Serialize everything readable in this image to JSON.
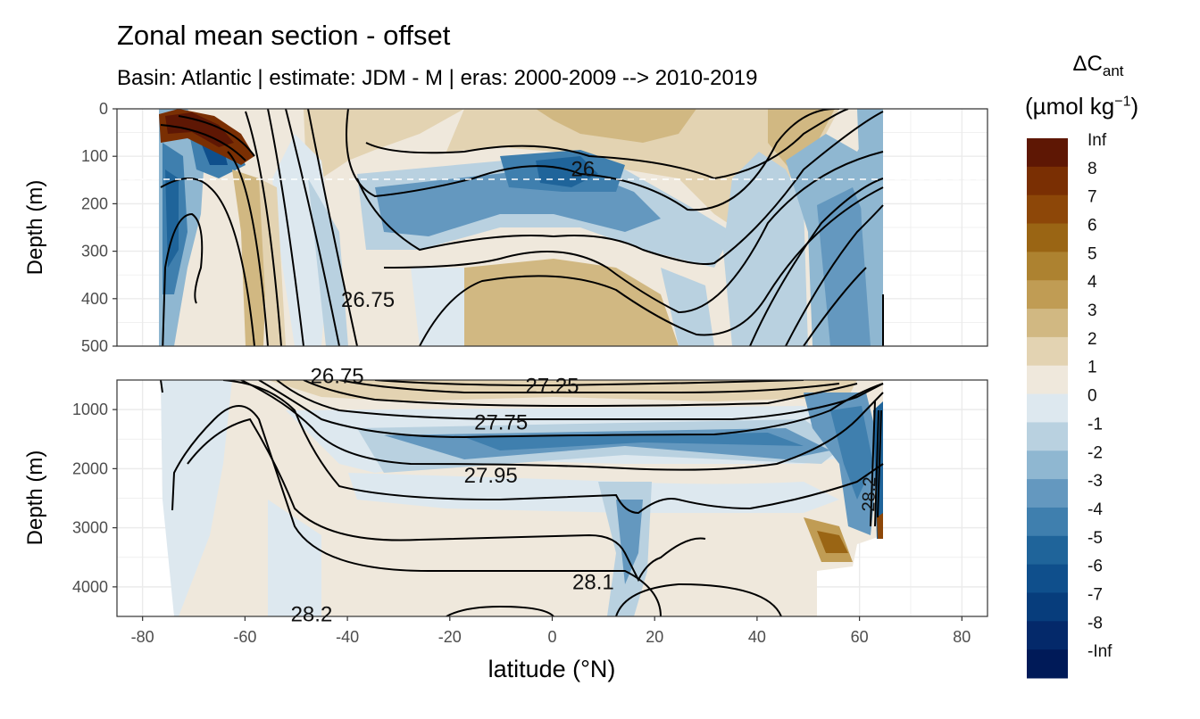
{
  "chart_data": {
    "type": "heatmap",
    "title": "Zonal mean section - offset",
    "subtitle": "Basin: Atlantic | estimate: JDM - M | eras: 2000-2009 --> 2010-2019",
    "xlabel": "latitude (°N)",
    "ylabel": "Depth (m)",
    "xlim": [
      -85,
      85
    ],
    "x_ticks": [
      -80,
      -60,
      -40,
      -20,
      0,
      20,
      40,
      60,
      80
    ],
    "x_tick_labels": [
      "-80",
      "-60",
      "-40",
      "-20",
      "0",
      "20",
      "40",
      "60",
      "80"
    ],
    "panels": [
      {
        "name": "upper",
        "ylim": [
          0,
          500
        ],
        "y_ticks": [
          0,
          100,
          200,
          300,
          400,
          500
        ],
        "y_tick_labels": [
          "0",
          "100",
          "200",
          "300",
          "400",
          "500"
        ],
        "dashed_line_depth": 150,
        "contour_labels": [
          {
            "text": "26",
            "lat": 6,
            "depth": 125
          },
          {
            "text": "26.75",
            "lat": -36,
            "depth": 400
          }
        ]
      },
      {
        "name": "lower",
        "ylim": [
          500,
          4500
        ],
        "y_ticks": [
          1000,
          2000,
          3000,
          4000
        ],
        "y_tick_labels": [
          "1000",
          "2000",
          "3000",
          "4000"
        ],
        "contour_labels": [
          {
            "text": "26.75",
            "lat": -42,
            "depth": 420
          },
          {
            "text": "27.25",
            "lat": 0,
            "depth": 580
          },
          {
            "text": "27.75",
            "lat": -10,
            "depth": 1200
          },
          {
            "text": "27.95",
            "lat": -12,
            "depth": 2100
          },
          {
            "text": "28.1",
            "lat": 8,
            "depth": 3900
          },
          {
            "text": "28.2",
            "lat": -47,
            "depth": 4450
          },
          {
            "text": "28.2",
            "lat": 63,
            "depth": 2300
          }
        ]
      }
    ],
    "legend": {
      "title": "ΔC",
      "title_sub": "ant",
      "unit_prefix": "(µmol kg",
      "unit_sup": "−1",
      "unit_suffix": ")",
      "labels": [
        "Inf",
        "8",
        "7",
        "6",
        "5",
        "4",
        "3",
        "2",
        "1",
        "0",
        "-1",
        "-2",
        "-3",
        "-4",
        "-5",
        "-6",
        "-7",
        "-8",
        "-Inf"
      ],
      "colors": [
        "#5e1704",
        "#7a2f03",
        "#8d4708",
        "#9a6514",
        "#ad8230",
        "#c09c54",
        "#d1b882",
        "#e3d3b2",
        "#efe8dc",
        "#dde8ef",
        "#b9d1e0",
        "#8fb7d1",
        "#6498bf",
        "#3f7fae",
        "#1f649a",
        "#0f4f8c",
        "#073d7c",
        "#04296a",
        "#001a58"
      ]
    }
  }
}
